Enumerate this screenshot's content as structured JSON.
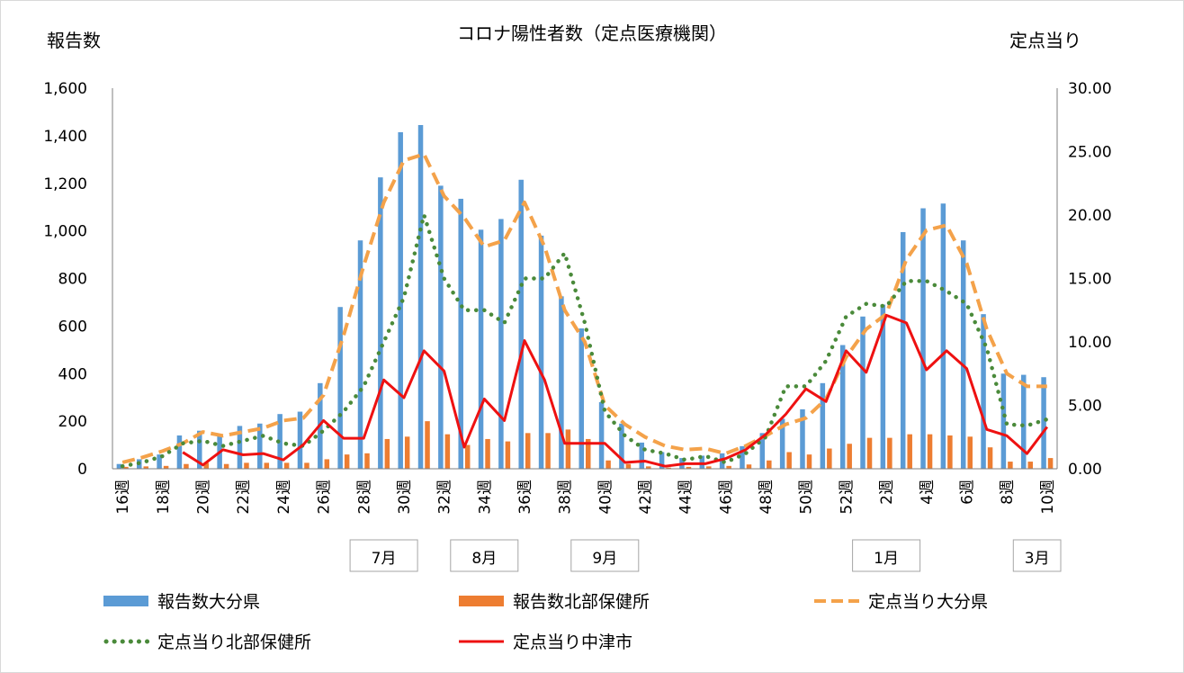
{
  "chart_data": {
    "type": "bar",
    "title": "コロナ陽性者数（定点医療機関）",
    "ylabel_left": "報告数",
    "ylabel_right": "定点当り",
    "ylim_left": [
      0,
      1600
    ],
    "ylim_right": [
      0,
      30
    ],
    "yticks_left": [
      "0",
      "200",
      "400",
      "600",
      "800",
      "1,000",
      "1,200",
      "1,400",
      "1,600"
    ],
    "yticks_right": [
      "0.00",
      "5.00",
      "10.00",
      "15.00",
      "20.00",
      "25.00",
      "30.00"
    ],
    "categories": [
      "16週",
      "17週",
      "18週",
      "19週",
      "20週",
      "21週",
      "22週",
      "23週",
      "24週",
      "25週",
      "26週",
      "27週",
      "28週",
      "29週",
      "30週",
      "31週",
      "32週",
      "33週",
      "34週",
      "35週",
      "36週",
      "37週",
      "38週",
      "39週",
      "40週",
      "41週",
      "42週",
      "43週",
      "44週",
      "45週",
      "46週",
      "47週",
      "48週",
      "49週",
      "50週",
      "51週",
      "52週",
      "1週",
      "2週",
      "3週",
      "4週",
      "5週",
      "6週",
      "7週",
      "8週",
      "9週",
      "10週"
    ],
    "x_tick_labels": [
      "16週",
      "18週",
      "20週",
      "22週",
      "24週",
      "26週",
      "28週",
      "30週",
      "32週",
      "34週",
      "36週",
      "38週",
      "40週",
      "42週",
      "44週",
      "46週",
      "48週",
      "50週",
      "52週",
      "2週",
      "4週",
      "6週",
      "8週",
      "10週"
    ],
    "month_labels": [
      {
        "label": "7月",
        "start_index": 12,
        "end_index": 14
      },
      {
        "label": "8月",
        "start_index": 17,
        "end_index": 19
      },
      {
        "label": "9月",
        "start_index": 23,
        "end_index": 25
      },
      {
        "label": "1月",
        "start_index": 37,
        "end_index": 39
      },
      {
        "label": "3月",
        "start_index": 45,
        "end_index": 46
      }
    ],
    "bar_series": [
      {
        "name": "報告数大分県",
        "color": "#5b9bd5",
        "axis": "left",
        "values": [
          20,
          40,
          60,
          140,
          160,
          140,
          180,
          190,
          230,
          240,
          360,
          680,
          960,
          1225,
          1415,
          1445,
          1190,
          1135,
          1005,
          1050,
          1215,
          980,
          725,
          590,
          280,
          190,
          110,
          70,
          45,
          55,
          65,
          95,
          150,
          210,
          250,
          360,
          520,
          640,
          690,
          995,
          1095,
          1115,
          960,
          650,
          400,
          395,
          385
        ]
      },
      {
        "name": "報告数北部保健所",
        "color": "#ed7d31",
        "axis": "left",
        "values": [
          8,
          10,
          12,
          20,
          25,
          20,
          25,
          25,
          25,
          25,
          40,
          60,
          65,
          125,
          135,
          200,
          145,
          100,
          125,
          115,
          150,
          150,
          165,
          125,
          35,
          20,
          10,
          5,
          8,
          10,
          12,
          18,
          35,
          70,
          60,
          85,
          105,
          130,
          130,
          145,
          145,
          140,
          135,
          90,
          30,
          30,
          45
        ]
      }
    ],
    "line_series": [
      {
        "name": "定点当り大分県",
        "color": "#f4a24a",
        "style": "dashed",
        "axis": "right",
        "values": [
          0.5,
          0.9,
          1.4,
          2.0,
          2.9,
          2.6,
          2.9,
          3.2,
          3.8,
          4.0,
          5.8,
          10.5,
          16.0,
          21.0,
          24.3,
          24.8,
          21.5,
          19.8,
          17.5,
          18.0,
          21.0,
          17.5,
          12.5,
          10.0,
          5.0,
          3.5,
          2.5,
          1.8,
          1.5,
          1.6,
          1.2,
          1.8,
          2.6,
          3.5,
          4.0,
          5.5,
          8.8,
          11.0,
          12.2,
          16.5,
          18.8,
          19.2,
          16.2,
          11.0,
          7.5,
          6.5,
          6.5
        ]
      },
      {
        "name": "定点当り北部保健所",
        "color": "#4a8a3a",
        "style": "dotted",
        "axis": "right",
        "values": [
          0.2,
          0.5,
          1.0,
          2.0,
          2.2,
          1.8,
          2.2,
          2.6,
          2.0,
          1.8,
          3.0,
          4.5,
          6.5,
          10.0,
          13.5,
          20.0,
          15.0,
          12.5,
          12.5,
          11.5,
          15.0,
          15.0,
          17.0,
          11.5,
          4.5,
          2.6,
          1.5,
          1.2,
          0.7,
          1.0,
          0.5,
          1.2,
          2.5,
          6.5,
          6.5,
          8.5,
          12.0,
          13.0,
          12.8,
          14.8,
          14.8,
          14.0,
          13.0,
          9.5,
          3.5,
          3.4,
          3.9
        ]
      },
      {
        "name": "定点当り中津市",
        "color": "#ee1111",
        "style": "solid",
        "axis": "right",
        "values": [
          null,
          null,
          null,
          1.3,
          0.3,
          1.5,
          1.1,
          1.2,
          0.7,
          1.9,
          3.8,
          2.4,
          2.4,
          7.0,
          5.6,
          9.3,
          7.7,
          1.7,
          5.5,
          3.8,
          10.1,
          7.0,
          2.0,
          2.0,
          2.0,
          0.5,
          0.6,
          0.2,
          0.4,
          0.4,
          0.8,
          1.5,
          2.7,
          4.3,
          6.3,
          5.3,
          9.3,
          7.6,
          12.1,
          11.5,
          7.8,
          9.3,
          7.9,
          3.1,
          2.6,
          1.2,
          3.3
        ]
      }
    ],
    "legend": [
      {
        "label": "報告数大分県",
        "kind": "bar",
        "color": "#5b9bd5"
      },
      {
        "label": "報告数北部保健所",
        "kind": "bar",
        "color": "#ed7d31"
      },
      {
        "label": "定点当り大分県",
        "kind": "dashed",
        "color": "#f4a24a"
      },
      {
        "label": "定点当り北部保健所",
        "kind": "dotted",
        "color": "#4a8a3a"
      },
      {
        "label": "定点当り中津市",
        "kind": "solid",
        "color": "#ee1111"
      }
    ],
    "legend_placement": "bottom",
    "grid": false
  }
}
